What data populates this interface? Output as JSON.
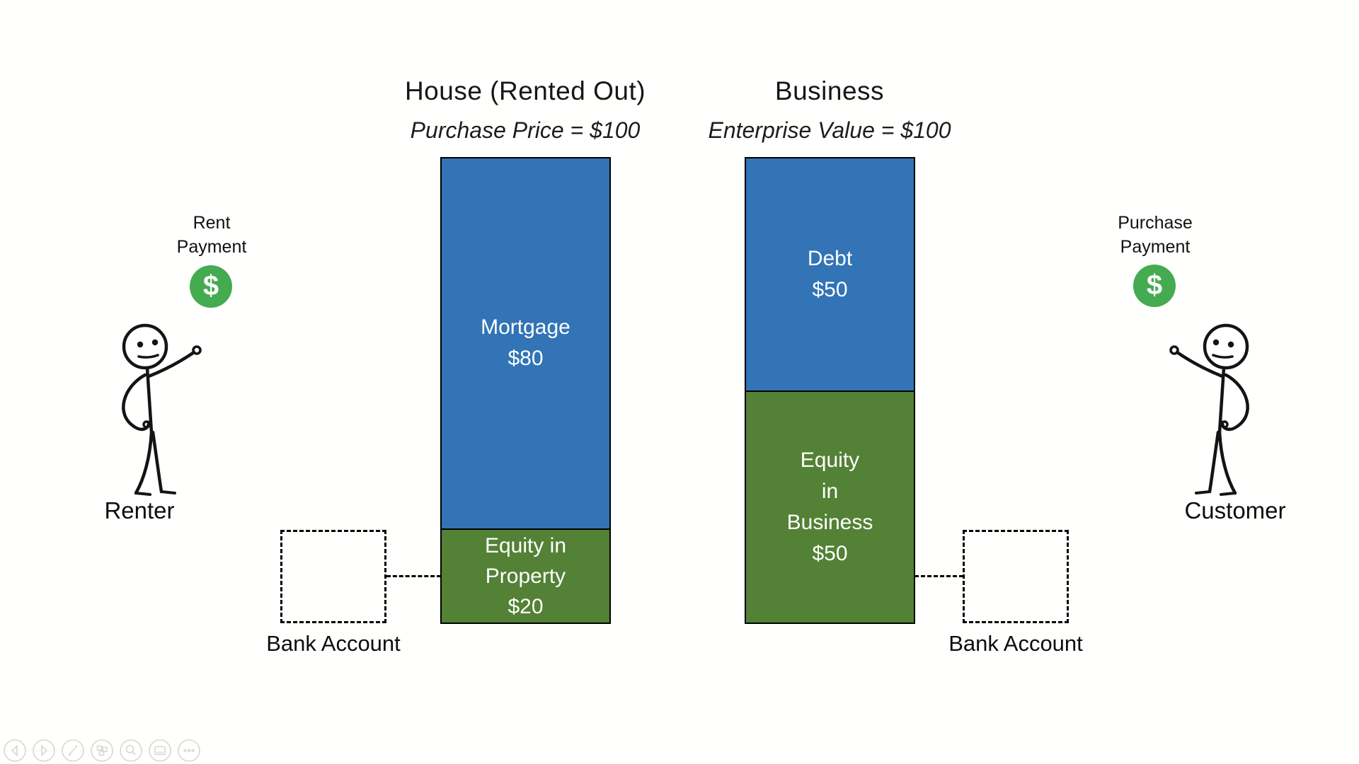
{
  "colors": {
    "debt_blue": "#3274b5",
    "equity_green": "#538135",
    "dollar_coin_green": "#45ab50",
    "outline_black": "#000000",
    "background": "#fffffe"
  },
  "house": {
    "title": "House (Rented Out)",
    "subtitle": "Purchase Price = $100",
    "segments": [
      {
        "name": "Mortgage",
        "lines": [
          "Mortgage",
          "$80"
        ],
        "value": 80,
        "height_pct": 79.7
      },
      {
        "name": "Equity in Property",
        "lines": [
          "Equity in",
          "Property",
          "$20"
        ],
        "value": 20,
        "height_pct": 20.3
      }
    ]
  },
  "business": {
    "title": "Business",
    "subtitle": "Enterprise Value = $100",
    "segments": [
      {
        "name": "Debt",
        "lines": [
          "Debt",
          "$50"
        ],
        "value": 50,
        "height_pct": 50
      },
      {
        "name": "Equity in Business",
        "lines": [
          "Equity",
          "in",
          "Business",
          "$50"
        ],
        "value": 50,
        "height_pct": 50
      }
    ]
  },
  "left_actor": {
    "payment_line1": "Rent",
    "payment_line2": "Payment",
    "dollar": "$",
    "name": "Renter"
  },
  "right_actor": {
    "payment_line1": "Purchase",
    "payment_line2": "Payment",
    "dollar": "$",
    "name": "Customer"
  },
  "bank_left": {
    "label": "Bank Account"
  },
  "bank_right": {
    "label": "Bank Account"
  },
  "toolbar": {
    "icons": [
      "previous-slide",
      "next-slide",
      "pen-and-laser-tools",
      "see-all-slides",
      "zoom-into-slide",
      "show-taskbar",
      "more-options"
    ]
  },
  "chart_data": [
    {
      "type": "bar",
      "stacked": true,
      "title": "House (Rented Out)",
      "subtitle": "Purchase Price = $100",
      "categories": [
        "House"
      ],
      "series": [
        {
          "name": "Mortgage",
          "values": [
            80
          ],
          "color": "#3274b5",
          "label": "Mortgage $80"
        },
        {
          "name": "Equity in Property",
          "values": [
            20
          ],
          "color": "#538135",
          "label": "Equity in Property $20"
        }
      ],
      "total": 100,
      "ylim": [
        0,
        100
      ],
      "grid": false,
      "legend": "none"
    },
    {
      "type": "bar",
      "stacked": true,
      "title": "Business",
      "subtitle": "Enterprise Value = $100",
      "categories": [
        "Business"
      ],
      "series": [
        {
          "name": "Debt",
          "values": [
            50
          ],
          "color": "#3274b5",
          "label": "Debt $50"
        },
        {
          "name": "Equity in Business",
          "values": [
            50
          ],
          "color": "#538135",
          "label": "Equity in Business $50"
        }
      ],
      "total": 100,
      "ylim": [
        0,
        100
      ],
      "grid": false,
      "legend": "none"
    }
  ]
}
